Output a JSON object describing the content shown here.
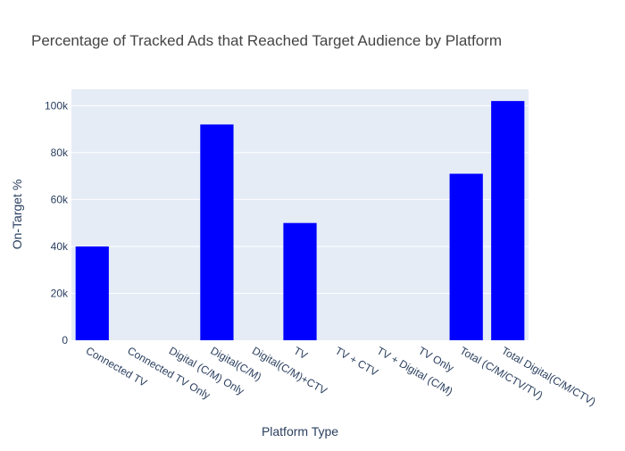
{
  "chart_data": {
    "type": "bar",
    "title": "Percentage of Tracked Ads that Reached Target Audience by Platform",
    "xlabel": "Platform Type",
    "ylabel": "On-Target %",
    "categories": [
      "Connected TV",
      "Connected TV Only",
      "Digital (C/M) Only",
      "Digital(C/M)",
      "Digital(C/M)+CTV",
      "TV",
      "TV + CTV",
      "TV + Digital (C/M)",
      "TV Only",
      "Total (C/M/CTV/TV)",
      "Total Digital(C/M/CTV)"
    ],
    "values": [
      40000,
      0,
      0,
      92000,
      0,
      50000,
      0,
      0,
      0,
      71000,
      102000
    ],
    "ylim": [
      0,
      107000
    ],
    "yticks": [
      0,
      20000,
      40000,
      60000,
      80000,
      100000
    ],
    "ytick_labels": [
      "0",
      "20k",
      "40k",
      "60k",
      "80k",
      "100k"
    ],
    "grid": true,
    "colors": {
      "bar": "#0000ff",
      "plot_bg": "#e5ecf6",
      "grid": "#ffffff",
      "text": "#2a3f5f",
      "title": "#444444"
    }
  }
}
